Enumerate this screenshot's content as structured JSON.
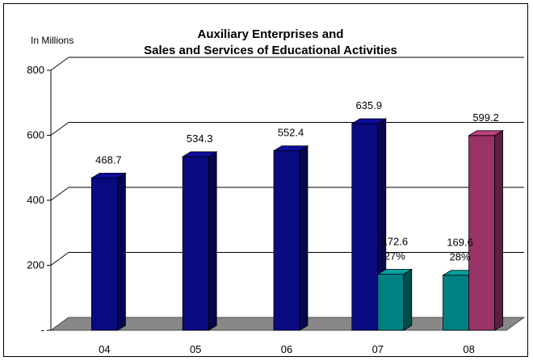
{
  "chart_data": {
    "type": "bar",
    "title_lines": [
      "Auxiliary Enterprises and",
      "Sales and Services of Educational Activities"
    ],
    "unit_label": "In Millions",
    "categories": [
      "04",
      "05",
      "06",
      "07",
      "08"
    ],
    "ylim": [
      0,
      800
    ],
    "yticks": [
      0,
      200,
      400,
      600,
      800
    ],
    "ytick_labels": [
      "-",
      "200",
      "400",
      "600",
      "800"
    ],
    "grid": true,
    "series": [
      {
        "color": "#0a0a80",
        "values": [
          468.7,
          534.3,
          552.4,
          635.9,
          null
        ],
        "labels": [
          "468.7",
          "534.3",
          "552.4",
          "635.9",
          ""
        ]
      },
      {
        "color": "#008080",
        "values": [
          null,
          null,
          null,
          172.6,
          169.6
        ],
        "labels": [
          "",
          "",
          "",
          "172.6",
          "169.6"
        ],
        "pct_labels": [
          "",
          "",
          "",
          "27%",
          "28%"
        ]
      },
      {
        "color": "#993366",
        "values": [
          null,
          null,
          null,
          null,
          599.2
        ],
        "labels": [
          "",
          "",
          "",
          "",
          "599.2"
        ]
      }
    ]
  }
}
